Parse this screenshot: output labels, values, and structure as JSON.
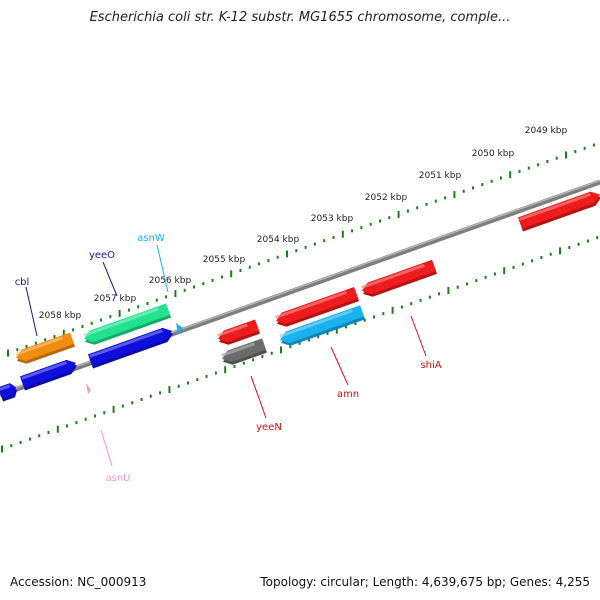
{
  "title": "Escherichia coli str. K-12 substr. MG1655 chromosome, comple...",
  "footer": {
    "accession": "Accession: NC_000913",
    "summary": "Topology: circular; Length: 4,639,675 bp; Genes: 4,255"
  },
  "scale_labels": [
    "2049 kbp",
    "2050 kbp",
    "2051 kbp",
    "2052 kbp",
    "2053 kbp",
    "2054 kbp",
    "2055 kbp",
    "2056 kbp",
    "2057 kbp",
    "2058 kbp"
  ],
  "colors": {
    "backbone": "#8a8a8a",
    "ticks": "#1d7d1d",
    "red": "#ee1c1c",
    "blue": "#0f0fdd",
    "orange": "#f08c10",
    "green": "#22e18f",
    "cyan": "#19b2ee",
    "gray": "#6b6b6b",
    "pink": "#f09ac8",
    "label_blue": "#1a1a8c",
    "label_red": "#cc1111",
    "label_cyan": "#19b2ee",
    "label_pink": "#f09ac8"
  },
  "genes": [
    {
      "name": "cbl",
      "color": "orange",
      "strand": "+"
    },
    {
      "name": "yeeO",
      "color": "green",
      "strand": "+"
    },
    {
      "name": "asnW",
      "color": "cyan",
      "strand": "+"
    },
    {
      "name": "asnU",
      "color": "pink",
      "strand": "-"
    },
    {
      "name": "yeeN",
      "color": "gray",
      "strand": "-"
    },
    {
      "name": "amn",
      "color": "cyan",
      "strand": "-"
    },
    {
      "name": "shiA",
      "color": "red",
      "strand": "-"
    }
  ]
}
